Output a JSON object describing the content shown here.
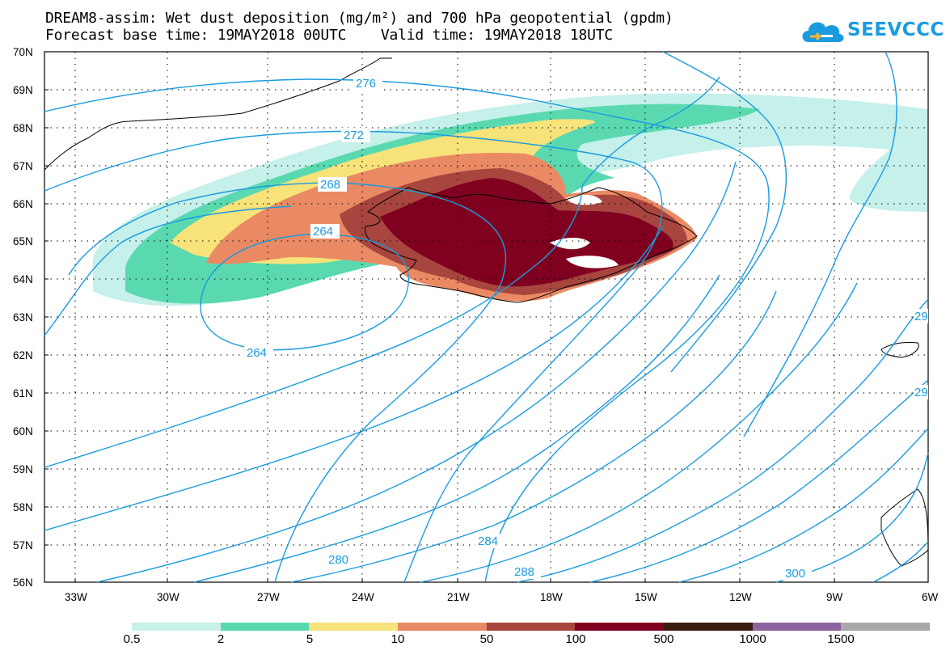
{
  "title": {
    "line1": "DREAM8-assim: Wet dust deposition (mg/m²) and 700 hPa geopotential (gpdm)",
    "line2": "Forecast base time: 19MAY2018 00UTC    Valid time: 19MAY2018 18UTC"
  },
  "logo": {
    "text": "SEEVCCC",
    "icon": "cloud-icon"
  },
  "map": {
    "lat_labels": [
      "70N",
      "69N",
      "68N",
      "67N",
      "66N",
      "65N",
      "64N",
      "63N",
      "62N",
      "61N",
      "60N",
      "59N",
      "58N",
      "57N",
      "56N"
    ],
    "lon_labels": [
      "33W",
      "30W",
      "27W",
      "24W",
      "21W",
      "18W",
      "15W",
      "12W",
      "9W",
      "6W"
    ],
    "contour_labels": [
      "276",
      "272",
      "268",
      "264",
      "264",
      "280",
      "284",
      "288",
      "300",
      "29",
      "29"
    ],
    "contour_color": "#1a9be0"
  },
  "legend": {
    "labels": [
      "0.5",
      "2",
      "5",
      "10",
      "50",
      "100",
      "500",
      "1000",
      "1500"
    ],
    "colors": [
      "#c6f0ea",
      "#5ad9b0",
      "#f8e27a",
      "#ea8a64",
      "#a8453e",
      "#800020",
      "#3a1c10",
      "#8e64a0",
      "#a8a8a8"
    ]
  }
}
